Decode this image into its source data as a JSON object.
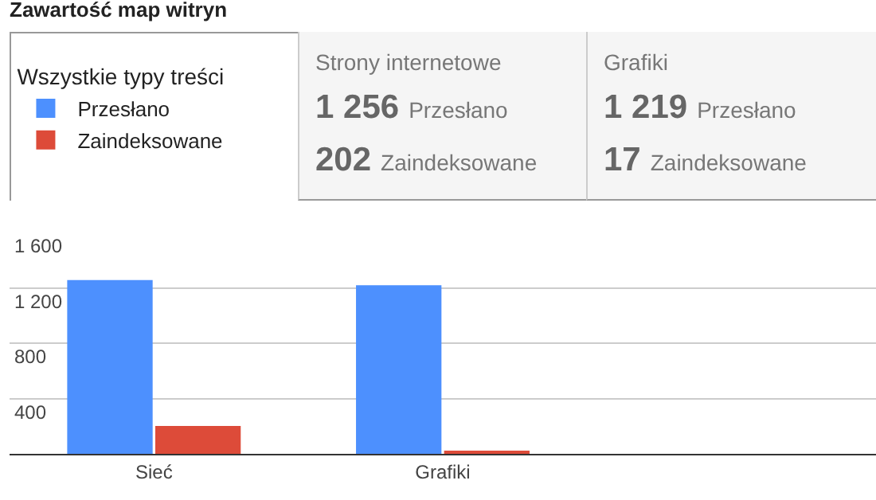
{
  "chart_data": {
    "type": "bar",
    "title": "Zawartość map witryn",
    "legend_title": "Wszystkie typy treści",
    "categories": [
      "Sieć",
      "Grafiki",
      null
    ],
    "series": [
      {
        "name": "Przesłano",
        "color": "#4d90fe",
        "values": [
          1256,
          1219,
          null
        ]
      },
      {
        "name": "Zaindeksowane",
        "color": "#dd4b39",
        "values": [
          202,
          17,
          null
        ]
      }
    ],
    "ylim": [
      0,
      1600
    ],
    "yticks": [
      {
        "value": 400,
        "label": "400"
      },
      {
        "value": 800,
        "label": "800"
      },
      {
        "value": 1200,
        "label": "1 200"
      },
      {
        "value": 1600,
        "label": "1 600"
      }
    ],
    "grid": "y",
    "legend": "top left",
    "annotations": [
      "Strony internetowe",
      "1 256",
      "Przesłano",
      "202",
      "Zaindeksowane",
      "Grafiki",
      "1 219",
      "Przesłano",
      "17",
      "Zaindeksowane"
    ]
  }
}
